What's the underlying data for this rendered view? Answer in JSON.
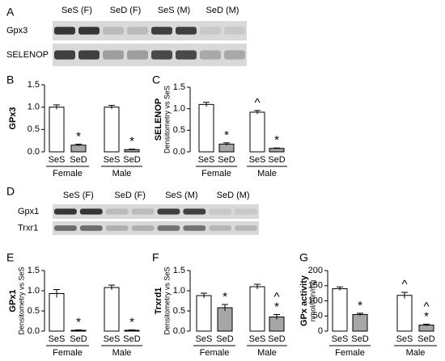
{
  "blots": [
    {
      "panel": "A",
      "lanes": [
        "SeS (F)",
        "SeD (F)",
        "SeS (M)",
        "SeD (M)"
      ],
      "rows": [
        "Gpx3",
        "SELENOP"
      ]
    },
    {
      "panel": "D",
      "lanes": [
        "SeS (F)",
        "SeD (F)",
        "SeS (M)",
        "SeD (M)"
      ],
      "rows": [
        "Gpx1",
        "Trxr1"
      ]
    }
  ],
  "chart_data": [
    {
      "type": "bar",
      "panel": "B",
      "ylabel": "GPx3",
      "categories": [
        "SeS",
        "SeD",
        "SeS",
        "SeD"
      ],
      "groups": [
        "Female",
        "Male"
      ],
      "values": [
        1.0,
        0.15,
        1.0,
        0.05
      ],
      "errors": [
        0.05,
        0.02,
        0.04,
        0.01
      ],
      "colors": [
        "#ffffff",
        "#a6a6a6",
        "#ffffff",
        "#a6a6a6"
      ],
      "annotations": [
        [],
        [
          "*"
        ],
        [],
        [
          "*"
        ]
      ],
      "ylim": [
        0,
        1.5
      ],
      "yticks": [
        {
          "value": 0,
          "label": "0.0"
        },
        0.5,
        {
          "value": 1,
          "label": "1.0"
        },
        1.5
      ]
    },
    {
      "type": "bar",
      "panel": "C",
      "ylabel": "SELENOP",
      "ysublabel": "Densitometry vs SeS",
      "categories": [
        "SeS",
        "SeD",
        "SeS",
        "SeD"
      ],
      "groups": [
        "Female",
        "Male"
      ],
      "values": [
        1.1,
        0.18,
        0.92,
        0.08
      ],
      "errors": [
        0.05,
        0.03,
        0.04,
        0.01
      ],
      "colors": [
        "#ffffff",
        "#a6a6a6",
        "#ffffff",
        "#a6a6a6"
      ],
      "annotations": [
        [],
        [
          "*"
        ],
        [
          "^"
        ],
        [
          "*"
        ]
      ],
      "ylim": [
        0,
        1.5
      ],
      "yticks": [
        {
          "value": 0,
          "label": "0.0"
        },
        0.5,
        {
          "value": 1,
          "label": "1.0"
        },
        1.5
      ]
    },
    {
      "type": "bar",
      "panel": "E",
      "ylabel": "GPx1",
      "ysublabel": "Densitometry vs SeS",
      "categories": [
        "SeS",
        "SeD",
        "SeS",
        "SeD"
      ],
      "groups": [
        "Female",
        "Male"
      ],
      "values": [
        0.93,
        0.02,
        1.08,
        0.02
      ],
      "errors": [
        0.1,
        0.01,
        0.06,
        0.01
      ],
      "colors": [
        "#ffffff",
        "#a6a6a6",
        "#ffffff",
        "#a6a6a6"
      ],
      "annotations": [
        [],
        [
          "*"
        ],
        [],
        [
          "*"
        ]
      ],
      "ylim": [
        0,
        1.5
      ],
      "yticks": [
        {
          "value": 0,
          "label": "0.0"
        },
        0.5,
        {
          "value": 1,
          "label": "1.0"
        },
        1.5
      ]
    },
    {
      "type": "bar",
      "panel": "F",
      "ylabel": "Trxrd1",
      "ysublabel": "Densitometry vs SeS",
      "categories": [
        "SeS",
        "SeD",
        "SeS",
        "SeD"
      ],
      "groups": [
        "Female",
        "Male"
      ],
      "values": [
        0.88,
        0.58,
        1.1,
        0.35
      ],
      "errors": [
        0.06,
        0.08,
        0.06,
        0.06
      ],
      "colors": [
        "#ffffff",
        "#a6a6a6",
        "#ffffff",
        "#a6a6a6"
      ],
      "annotations": [
        [],
        [
          "*"
        ],
        [],
        [
          "^",
          "*"
        ]
      ],
      "ylim": [
        0,
        1.5
      ],
      "yticks": [
        {
          "value": 0,
          "label": "0.0"
        },
        0.5,
        {
          "value": 1,
          "label": "1.0"
        },
        1.5
      ]
    },
    {
      "type": "bar",
      "panel": "G",
      "ylabel": "GPx activity",
      "ysublabel": "nmol/min/mg",
      "categories": [
        "SeS",
        "SeD",
        "SeS",
        "SeD"
      ],
      "groups": [
        "Female",
        "Male"
      ],
      "values": [
        140,
        55,
        118,
        20
      ],
      "errors": [
        6,
        4,
        10,
        3
      ],
      "colors": [
        "#ffffff",
        "#a6a6a6",
        "#ffffff",
        "#a6a6a6"
      ],
      "annotations": [
        [],
        [
          "*"
        ],
        [
          "^"
        ],
        [
          "^",
          "*"
        ]
      ],
      "ylim": [
        0,
        200
      ],
      "yticks": [
        0,
        50,
        100,
        150,
        200
      ]
    }
  ]
}
